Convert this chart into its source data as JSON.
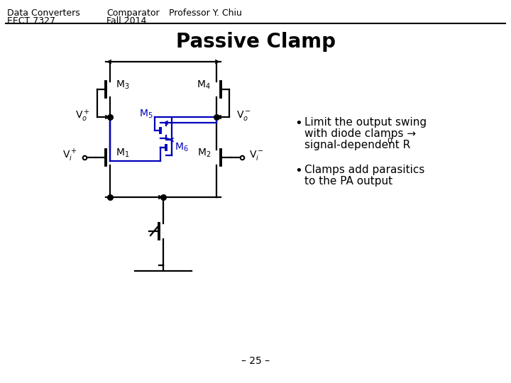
{
  "bg_color": "#ffffff",
  "header_left_line1": "Data Converters",
  "header_left_line2": "EECT 7327",
  "header_mid_line1": "Comparator",
  "header_mid_line2": "Fall 2014",
  "header_right_line1": "Professor Y. Chiu",
  "title": "Passive Clamp",
  "bullet1_line1": "Limit the output swing",
  "bullet1_line2": "with diode clamps →",
  "bullet1_line3": "signal-dependent R",
  "bullet1_sub": "0",
  "bullet2_line1": "Clamps add parasitics",
  "bullet2_line2": "to the PA output",
  "page_num": "– 25 –",
  "black": "#000000",
  "blue": "#0000bb",
  "header_fontsize": 9,
  "title_fontsize": 20,
  "bullet_fontsize": 11,
  "page_fontsize": 10
}
